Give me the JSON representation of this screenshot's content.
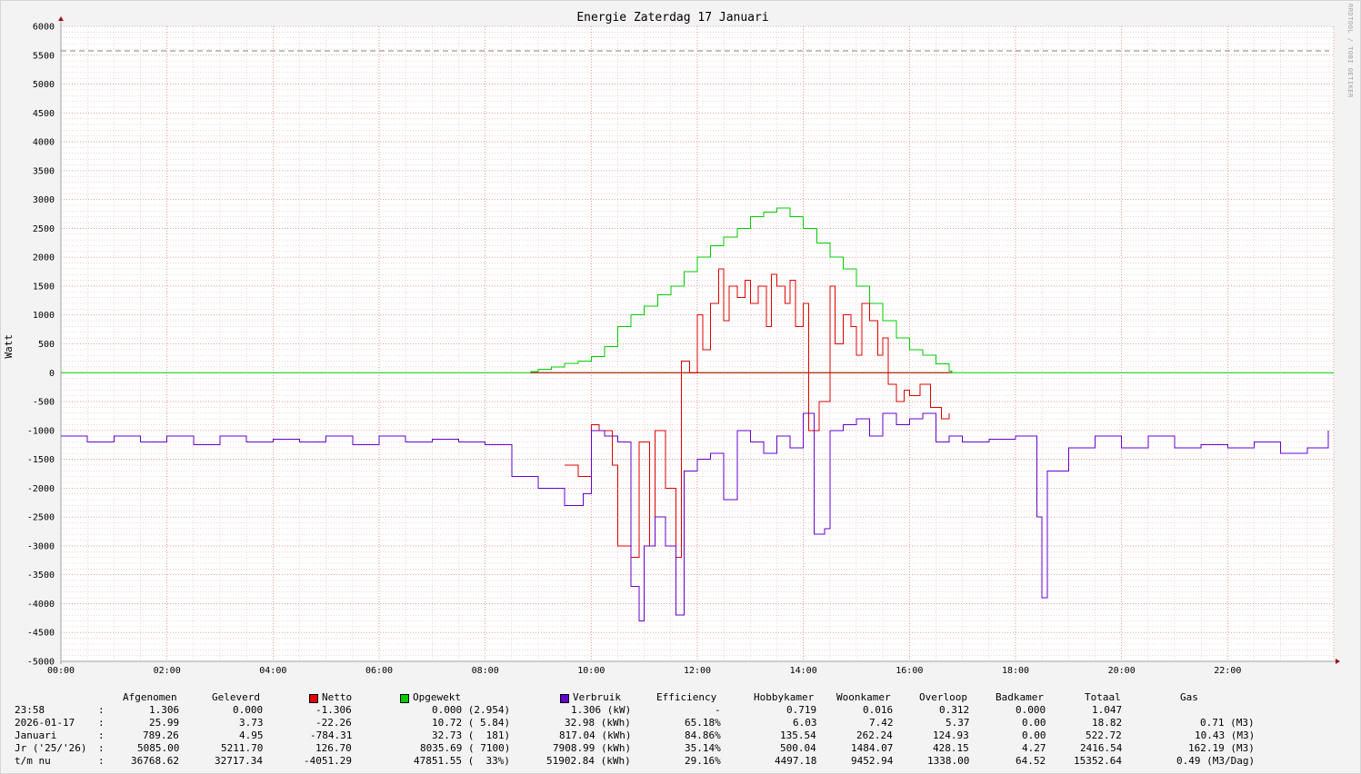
{
  "chart_data": {
    "type": "line",
    "title": "Energie Zaterdag  17 Januari",
    "ylabel": "Watt",
    "credit": "RRDTOOL / TOBI OETIKER",
    "ylim": [
      -5000,
      6000
    ],
    "ytick_step": 500,
    "xlim_hours": [
      0,
      24
    ],
    "x_tick_labels": [
      "00:00",
      "02:00",
      "04:00",
      "06:00",
      "08:00",
      "10:00",
      "12:00",
      "14:00",
      "16:00",
      "18:00",
      "20:00",
      "22:00"
    ],
    "max_line_value": 5575,
    "colors": {
      "netto": "#e00000",
      "opgewekt": "#00cc00",
      "verbruik": "#6600cc",
      "grid_minor": "#e2b3b3",
      "grid_major": "#e07070",
      "axis": "#a0a0a0",
      "max_line": "#808080"
    },
    "series": [
      {
        "name": "Opgewekt",
        "color": "#00cc00",
        "points": [
          [
            8.85,
            20
          ],
          [
            9.0,
            60
          ],
          [
            9.25,
            100
          ],
          [
            9.5,
            160
          ],
          [
            9.75,
            200
          ],
          [
            10.0,
            280
          ],
          [
            10.25,
            450
          ],
          [
            10.5,
            800
          ],
          [
            10.75,
            1000
          ],
          [
            11.0,
            1150
          ],
          [
            11.25,
            1350
          ],
          [
            11.5,
            1500
          ],
          [
            11.75,
            1750
          ],
          [
            12.0,
            2000
          ],
          [
            12.25,
            2200
          ],
          [
            12.5,
            2350
          ],
          [
            12.75,
            2500
          ],
          [
            13.0,
            2700
          ],
          [
            13.25,
            2780
          ],
          [
            13.5,
            2850
          ],
          [
            13.75,
            2700
          ],
          [
            14.0,
            2500
          ],
          [
            14.25,
            2250
          ],
          [
            14.5,
            2000
          ],
          [
            14.75,
            1800
          ],
          [
            15.0,
            1500
          ],
          [
            15.25,
            1200
          ],
          [
            15.5,
            900
          ],
          [
            15.75,
            600
          ],
          [
            16.0,
            400
          ],
          [
            16.25,
            300
          ],
          [
            16.5,
            150
          ],
          [
            16.75,
            30
          ],
          [
            16.8,
            0
          ]
        ]
      },
      {
        "name": "Netto",
        "color": "#e00000",
        "points": [
          [
            9.5,
            -1600
          ],
          [
            9.75,
            -1800
          ],
          [
            10.0,
            -900
          ],
          [
            10.15,
            -1000
          ],
          [
            10.4,
            -1600
          ],
          [
            10.5,
            -3000
          ],
          [
            10.75,
            -3200
          ],
          [
            10.9,
            -1200
          ],
          [
            11.1,
            -3000
          ],
          [
            11.2,
            -1000
          ],
          [
            11.4,
            -2000
          ],
          [
            11.6,
            -3200
          ],
          [
            11.7,
            200
          ],
          [
            11.85,
            0
          ],
          [
            12.0,
            1000
          ],
          [
            12.1,
            400
          ],
          [
            12.25,
            1200
          ],
          [
            12.4,
            1800
          ],
          [
            12.5,
            900
          ],
          [
            12.6,
            1500
          ],
          [
            12.75,
            1300
          ],
          [
            12.9,
            1600
          ],
          [
            13.0,
            1200
          ],
          [
            13.15,
            1500
          ],
          [
            13.3,
            800
          ],
          [
            13.4,
            1700
          ],
          [
            13.5,
            1500
          ],
          [
            13.65,
            1200
          ],
          [
            13.75,
            1600
          ],
          [
            13.85,
            800
          ],
          [
            14.0,
            1200
          ],
          [
            14.1,
            -1000
          ],
          [
            14.3,
            -500
          ],
          [
            14.5,
            1500
          ],
          [
            14.6,
            500
          ],
          [
            14.75,
            1000
          ],
          [
            14.9,
            800
          ],
          [
            15.0,
            300
          ],
          [
            15.1,
            1200
          ],
          [
            15.25,
            900
          ],
          [
            15.4,
            300
          ],
          [
            15.5,
            600
          ],
          [
            15.6,
            -200
          ],
          [
            15.75,
            -500
          ],
          [
            15.9,
            -300
          ],
          [
            16.0,
            -400
          ],
          [
            16.2,
            -200
          ],
          [
            16.4,
            -600
          ],
          [
            16.6,
            -800
          ],
          [
            16.75,
            -700
          ]
        ]
      },
      {
        "name": "Verbruik",
        "color": "#6600cc",
        "points": [
          [
            0.0,
            -1100
          ],
          [
            0.5,
            -1200
          ],
          [
            1.0,
            -1100
          ],
          [
            1.5,
            -1200
          ],
          [
            2.0,
            -1100
          ],
          [
            2.5,
            -1250
          ],
          [
            3.0,
            -1100
          ],
          [
            3.5,
            -1200
          ],
          [
            4.0,
            -1150
          ],
          [
            4.5,
            -1200
          ],
          [
            5.0,
            -1100
          ],
          [
            5.5,
            -1250
          ],
          [
            6.0,
            -1100
          ],
          [
            6.5,
            -1200
          ],
          [
            7.0,
            -1150
          ],
          [
            7.5,
            -1200
          ],
          [
            8.0,
            -1250
          ],
          [
            8.5,
            -1800
          ],
          [
            9.0,
            -2000
          ],
          [
            9.5,
            -2300
          ],
          [
            9.85,
            -2100
          ],
          [
            10.0,
            -1000
          ],
          [
            10.25,
            -1100
          ],
          [
            10.5,
            -1200
          ],
          [
            10.75,
            -3700
          ],
          [
            10.9,
            -4300
          ],
          [
            11.0,
            -3000
          ],
          [
            11.2,
            -2500
          ],
          [
            11.4,
            -3000
          ],
          [
            11.6,
            -4200
          ],
          [
            11.75,
            -1700
          ],
          [
            12.0,
            -1500
          ],
          [
            12.25,
            -1400
          ],
          [
            12.5,
            -2200
          ],
          [
            12.75,
            -1000
          ],
          [
            13.0,
            -1200
          ],
          [
            13.25,
            -1400
          ],
          [
            13.5,
            -1100
          ],
          [
            13.75,
            -1300
          ],
          [
            14.0,
            -700
          ],
          [
            14.2,
            -2800
          ],
          [
            14.4,
            -2700
          ],
          [
            14.5,
            -1000
          ],
          [
            14.75,
            -900
          ],
          [
            15.0,
            -800
          ],
          [
            15.25,
            -1100
          ],
          [
            15.5,
            -700
          ],
          [
            15.75,
            -900
          ],
          [
            16.0,
            -800
          ],
          [
            16.25,
            -700
          ],
          [
            16.5,
            -1200
          ],
          [
            16.75,
            -1100
          ],
          [
            17.0,
            -1200
          ],
          [
            17.5,
            -1150
          ],
          [
            18.0,
            -1100
          ],
          [
            18.4,
            -2500
          ],
          [
            18.5,
            -3900
          ],
          [
            18.6,
            -1700
          ],
          [
            19.0,
            -1300
          ],
          [
            19.5,
            -1100
          ],
          [
            20.0,
            -1300
          ],
          [
            20.5,
            -1100
          ],
          [
            21.0,
            -1300
          ],
          [
            21.5,
            -1250
          ],
          [
            22.0,
            -1300
          ],
          [
            22.5,
            -1200
          ],
          [
            23.0,
            -1400
          ],
          [
            23.5,
            -1300
          ],
          [
            23.9,
            -1000
          ]
        ]
      }
    ]
  },
  "legend": {
    "headers": [
      "Afgenomen",
      "Geleverd",
      "Netto",
      "Opgewekt",
      "Verbruik",
      "Efficiency",
      "Hobbykamer",
      "Woonkamer",
      "Overloop",
      "Badkamer",
      "Totaal",
      "Gas"
    ],
    "rows": [
      {
        "label": "23:58",
        "sep": ":",
        "values": [
          "1.306",
          "0.000",
          "-1.306",
          "0.000 (2.954)",
          "1.306 (kW)",
          "-",
          "0.719",
          "0.016",
          "0.312",
          "0.000",
          "1.047",
          ""
        ]
      },
      {
        "label": "2026-01-17",
        "sep": ":",
        "values": [
          "25.99",
          "3.73",
          "-22.26",
          "10.72 ( 5.84)",
          "32.98 (kWh)",
          "65.18%",
          "6.03",
          "7.42",
          "5.37",
          "0.00",
          "18.82",
          "0.71 (M3)"
        ]
      },
      {
        "label": "Januari",
        "sep": ":",
        "values": [
          "789.26",
          "4.95",
          "-784.31",
          "32.73 (  181)",
          "817.04 (kWh)",
          "84.86%",
          "135.54",
          "262.24",
          "124.93",
          "0.00",
          "522.72",
          "10.43 (M3)"
        ]
      },
      {
        "label": "Jr ('25/'26)",
        "sep": ":",
        "values": [
          "5085.00",
          "5211.70",
          "126.70",
          "8035.69 ( 7100)",
          "7908.99 (kWh)",
          "35.14%",
          "500.04",
          "1484.07",
          "428.15",
          "4.27",
          "2416.54",
          "162.19 (M3)"
        ]
      },
      {
        "label": "t/m nu",
        "sep": ":",
        "values": [
          "36768.62",
          "32717.34",
          "-4051.29",
          "47851.55 (  33%)",
          "51902.84 (kWh)",
          "29.16%",
          "4497.18",
          "9452.94",
          "1338.00",
          "64.52",
          "15352.64",
          "0.49 (M3/Dag)"
        ]
      }
    ]
  }
}
